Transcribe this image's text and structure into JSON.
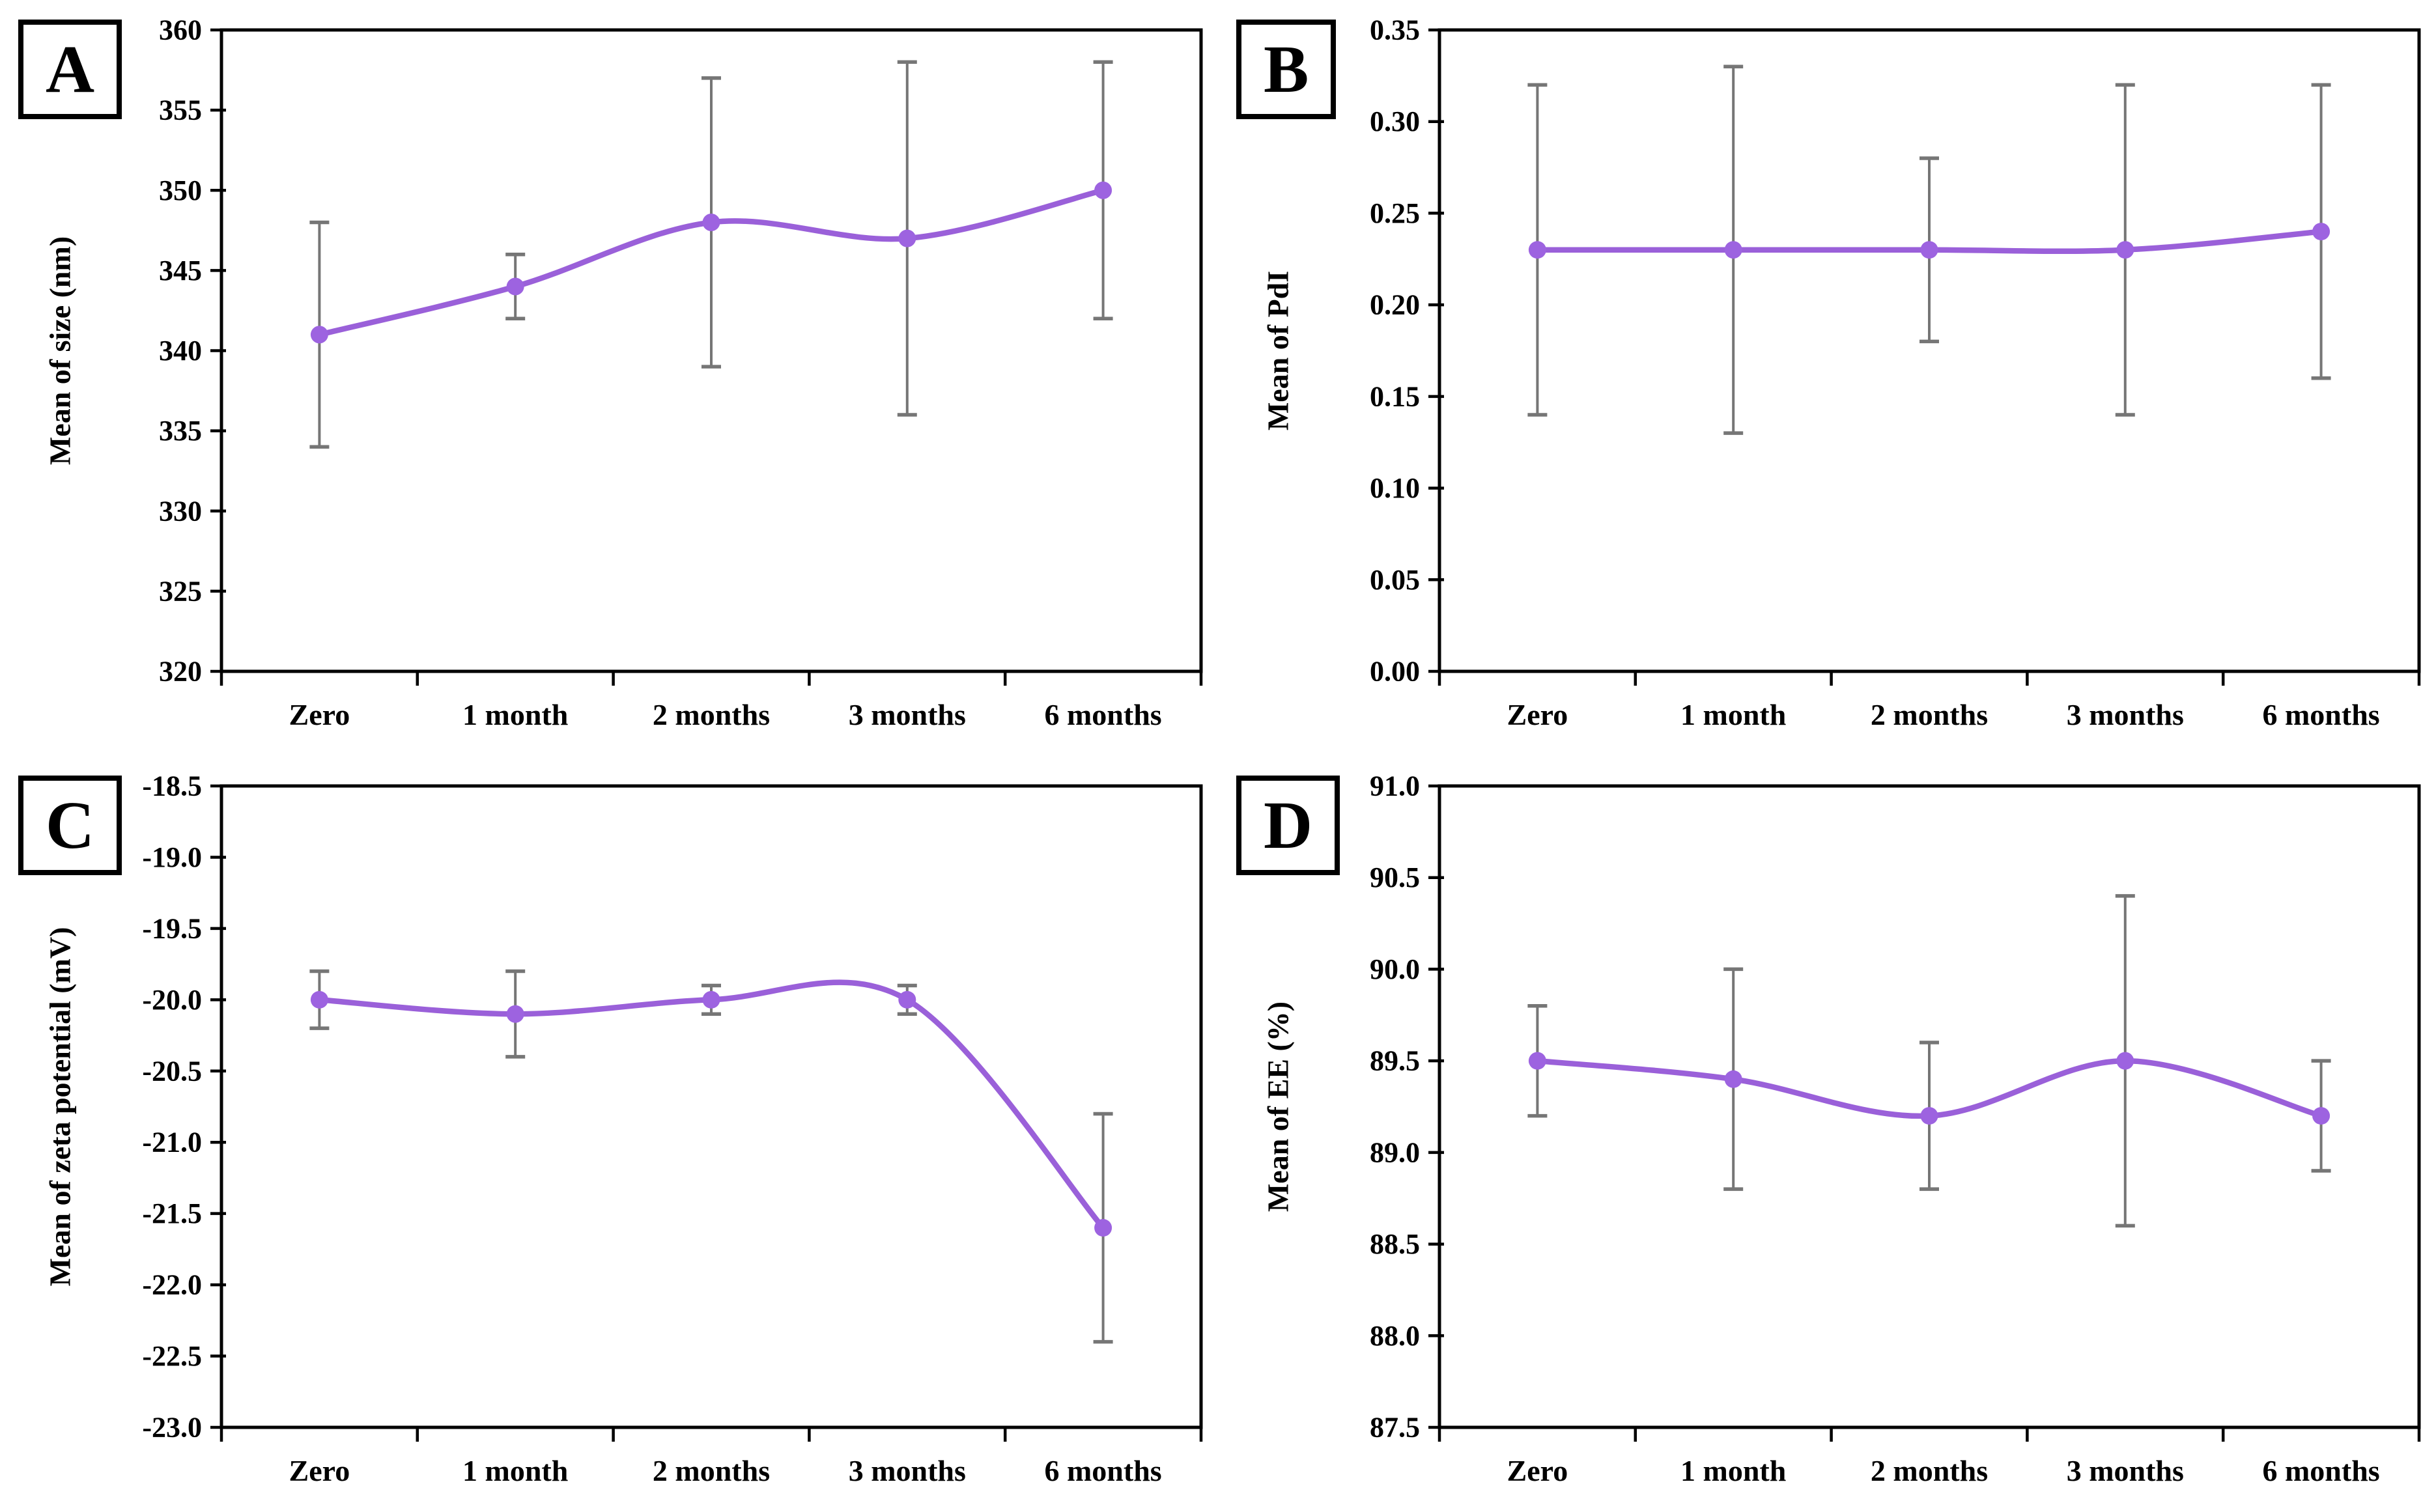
{
  "figure": {
    "background": "#ffffff",
    "description_panels": [
      "A",
      "B",
      "C",
      "D"
    ]
  },
  "colors": {
    "line": "#9a60d9",
    "marker": "#9d63e0",
    "error_bar": "#767676",
    "axis": "#000000",
    "text": "#000000",
    "panel_label_border": "#000000"
  },
  "chart_data": [
    {
      "type": "line",
      "panel": "A",
      "ylabel": "Mean of size (nm)",
      "xlabel": "",
      "categories": [
        "Zero",
        "1 month",
        "2 months",
        "3 months",
        "6 months"
      ],
      "values": [
        341,
        344,
        348,
        347,
        350
      ],
      "err_low": [
        334,
        342,
        339,
        336,
        342
      ],
      "err_high": [
        348,
        346,
        357,
        358,
        358
      ],
      "ylim": [
        320,
        360
      ],
      "ytick_step": 5,
      "ydecimals": 0,
      "grid": false,
      "legend": "none",
      "marker": "circle",
      "smooth": true
    },
    {
      "type": "line",
      "panel": "B",
      "ylabel": "Mean of PdI",
      "xlabel": "",
      "categories": [
        "Zero",
        "1 month",
        "2 months",
        "3 months",
        "6 months"
      ],
      "values": [
        0.23,
        0.23,
        0.23,
        0.23,
        0.24
      ],
      "err_low": [
        0.14,
        0.13,
        0.18,
        0.14,
        0.16
      ],
      "err_high": [
        0.32,
        0.33,
        0.28,
        0.32,
        0.32
      ],
      "ylim": [
        0.0,
        0.35
      ],
      "ytick_step": 0.05,
      "ydecimals": 2,
      "grid": false,
      "legend": "none",
      "marker": "circle",
      "smooth": true
    },
    {
      "type": "line",
      "panel": "C",
      "ylabel": "Mean of zeta potential (mV)",
      "xlabel": "",
      "categories": [
        "Zero",
        "1 month",
        "2 months",
        "3 months",
        "6 months"
      ],
      "values": [
        -20.0,
        -20.1,
        -20.0,
        -20.0,
        -21.6
      ],
      "err_low": [
        -20.2,
        -20.4,
        -20.1,
        -20.1,
        -22.4
      ],
      "err_high": [
        -19.8,
        -19.8,
        -19.9,
        -19.9,
        -20.8
      ],
      "ylim": [
        -23.0,
        -18.5
      ],
      "ytick_step": 0.5,
      "ydecimals": 1,
      "grid": false,
      "legend": "none",
      "marker": "circle",
      "smooth": true
    },
    {
      "type": "line",
      "panel": "D",
      "ylabel": "Mean of EE (%)",
      "xlabel": "",
      "categories": [
        "Zero",
        "1 month",
        "2 months",
        "3 months",
        "6 months"
      ],
      "values": [
        89.5,
        89.4,
        89.2,
        89.5,
        89.2
      ],
      "err_low": [
        89.2,
        88.8,
        88.8,
        88.6,
        88.9
      ],
      "err_high": [
        89.8,
        90.0,
        89.6,
        90.4,
        89.5
      ],
      "ylim": [
        87.5,
        91.0
      ],
      "ytick_step": 0.5,
      "ydecimals": 1,
      "grid": false,
      "legend": "none",
      "marker": "circle",
      "smooth": true
    }
  ]
}
